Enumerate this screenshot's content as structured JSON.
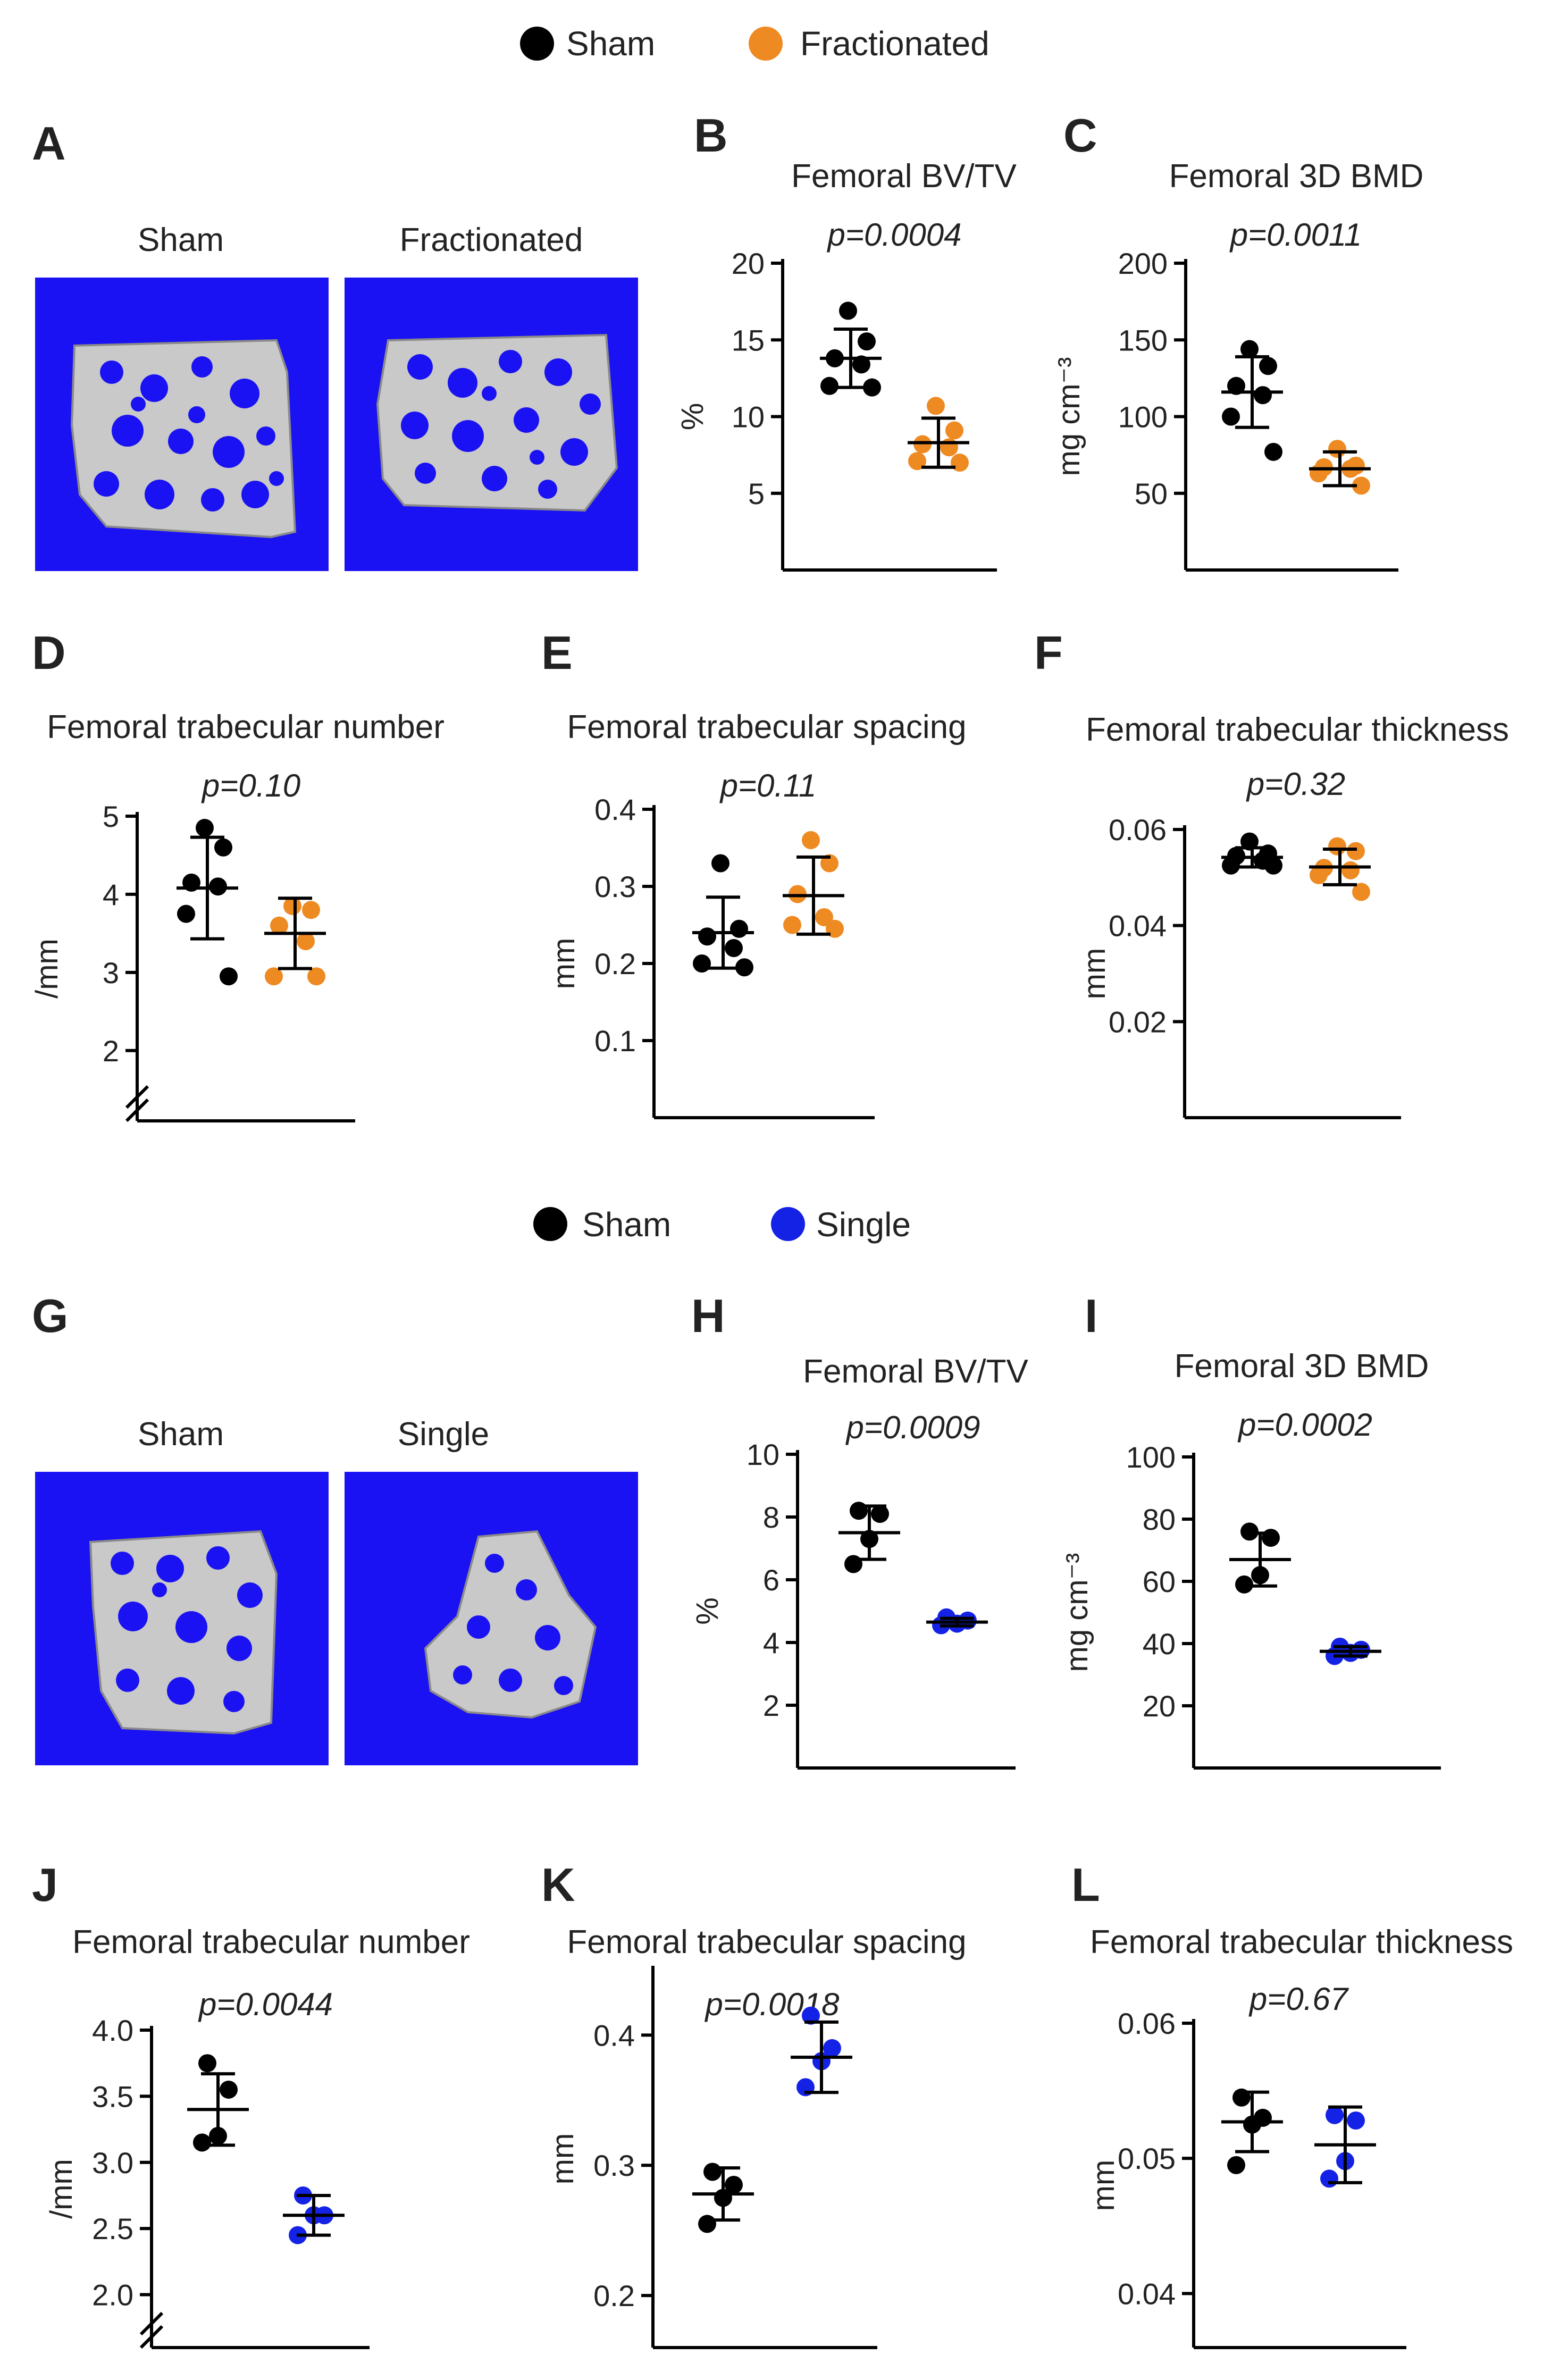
{
  "colors": {
    "sham": "#000000",
    "fractionated": "#ee8a22",
    "single": "#1422e6",
    "ct_background": "#1a12f2",
    "bone": "#c9c9c9"
  },
  "legends": [
    {
      "items": [
        {
          "label": "Sham",
          "color": "#000000"
        },
        {
          "label": "Fractionated",
          "color": "#ee8a22"
        }
      ]
    },
    {
      "items": [
        {
          "label": "Sham",
          "color": "#000000"
        },
        {
          "label": "Single",
          "color": "#1422e6"
        }
      ]
    }
  ],
  "image_panels": [
    {
      "letter": "A",
      "labels": [
        "Sham",
        "Fractionated"
      ]
    },
    {
      "letter": "G",
      "labels": [
        "Sham",
        "Single"
      ]
    }
  ],
  "chart_data": [
    {
      "letter": "B",
      "type": "scatter",
      "title": "Femoral BV/TV",
      "pvalue": "p=0.0004",
      "ylabel": "%",
      "ylim": [
        0,
        20
      ],
      "ticks": [
        "5",
        "10",
        "15",
        "20"
      ],
      "axis_break": false,
      "series": [
        {
          "name": "Sham",
          "color": "#000000",
          "values": [
            16.9,
            14.9,
            13.8,
            13.4,
            12.0,
            11.9
          ],
          "mean": 13.8,
          "sd": 1.9
        },
        {
          "name": "Fractionated",
          "color": "#ee8a22",
          "values": [
            10.7,
            9.1,
            8.2,
            8.0,
            7.1,
            7.0
          ],
          "mean": 8.3,
          "sd": 1.6
        }
      ]
    },
    {
      "letter": "C",
      "type": "scatter",
      "title": "Femoral 3D BMD",
      "pvalue": "p=0.0011",
      "ylabel": "mg cm⁻³",
      "ylim": [
        0,
        200
      ],
      "ticks": [
        "50",
        "100",
        "150",
        "200"
      ],
      "axis_break": false,
      "series": [
        {
          "name": "Sham",
          "color": "#000000",
          "values": [
            144,
            133,
            120,
            114,
            100,
            77
          ],
          "mean": 116,
          "sd": 23
        },
        {
          "name": "Fractionated",
          "color": "#ee8a22",
          "values": [
            79,
            68,
            67,
            66,
            63,
            55
          ],
          "mean": 66,
          "sd": 11
        }
      ]
    },
    {
      "letter": "D",
      "type": "scatter",
      "title": "Femoral trabecular number",
      "pvalue": "p=0.10",
      "ylabel": "/mm",
      "ylim": [
        1.1,
        5
      ],
      "ticks": [
        "2",
        "3",
        "4",
        "5"
      ],
      "axis_break": true,
      "series": [
        {
          "name": "Sham",
          "color": "#000000",
          "values": [
            4.85,
            4.6,
            4.15,
            4.1,
            3.75,
            2.95
          ],
          "mean": 4.08,
          "sd": 0.65
        },
        {
          "name": "Fractionated",
          "color": "#ee8a22",
          "values": [
            3.85,
            3.8,
            3.6,
            3.4,
            2.95,
            2.95
          ],
          "mean": 3.5,
          "sd": 0.45
        }
      ]
    },
    {
      "letter": "E",
      "type": "scatter",
      "title": "Femoral trabecular spacing",
      "pvalue": "p=0.11",
      "ylabel": "mm",
      "ylim": [
        0,
        0.4
      ],
      "ticks": [
        "0.1",
        "0.2",
        "0.3",
        "0.4"
      ],
      "axis_break": false,
      "series": [
        {
          "name": "Sham",
          "color": "#000000",
          "values": [
            0.33,
            0.245,
            0.235,
            0.22,
            0.2,
            0.195
          ],
          "mean": 0.24,
          "sd": 0.046
        },
        {
          "name": "Fractionated",
          "color": "#ee8a22",
          "values": [
            0.36,
            0.33,
            0.29,
            0.26,
            0.25,
            0.245
          ],
          "mean": 0.288,
          "sd": 0.05
        }
      ]
    },
    {
      "letter": "F",
      "type": "scatter",
      "title": "Femoral trabecular thickness",
      "pvalue": "p=0.32",
      "ylabel": "mm",
      "ylim": [
        0,
        0.06
      ],
      "ticks": [
        "0.02",
        "0.04",
        "0.06"
      ],
      "axis_break": false,
      "series": [
        {
          "name": "Sham",
          "color": "#000000",
          "values": [
            0.0575,
            0.055,
            0.0545,
            0.0535,
            0.0525,
            0.0525
          ],
          "mean": 0.0542,
          "sd": 0.002
        },
        {
          "name": "Fractionated",
          "color": "#ee8a22",
          "values": [
            0.0565,
            0.0555,
            0.052,
            0.0515,
            0.0505,
            0.047
          ],
          "mean": 0.0522,
          "sd": 0.0037
        }
      ]
    },
    {
      "letter": "H",
      "type": "scatter",
      "title": "Femoral BV/TV",
      "pvalue": "p=0.0009",
      "ylabel": "%",
      "ylim": [
        0,
        10
      ],
      "ticks": [
        "2",
        "4",
        "6",
        "8",
        "10"
      ],
      "axis_break": false,
      "series": [
        {
          "name": "Sham",
          "color": "#000000",
          "values": [
            8.2,
            8.1,
            7.3,
            6.5
          ],
          "mean": 7.5,
          "sd": 0.85
        },
        {
          "name": "Single",
          "color": "#1422e6",
          "values": [
            4.8,
            4.7,
            4.6,
            4.55
          ],
          "mean": 4.65,
          "sd": 0.12
        }
      ]
    },
    {
      "letter": "I",
      "type": "scatter",
      "title": "Femoral 3D BMD",
      "pvalue": "p=0.0002",
      "ylabel": "mg cm⁻³",
      "ylim": [
        0,
        100
      ],
      "ticks": [
        "20",
        "40",
        "60",
        "80",
        "100"
      ],
      "axis_break": false,
      "series": [
        {
          "name": "Sham",
          "color": "#000000",
          "values": [
            76,
            74,
            62,
            59
          ],
          "mean": 67,
          "sd": 8.5
        },
        {
          "name": "Single",
          "color": "#1422e6",
          "values": [
            39,
            38,
            37,
            36
          ],
          "mean": 37.5,
          "sd": 1.5
        }
      ]
    },
    {
      "letter": "J",
      "type": "scatter",
      "title": "Femoral trabecular number",
      "pvalue": "p=0.0044",
      "ylabel": "/mm",
      "ylim": [
        1.6,
        4.0
      ],
      "ticks": [
        "2.0",
        "2.5",
        "3.0",
        "3.5",
        "4.0"
      ],
      "axis_break": true,
      "series": [
        {
          "name": "Sham",
          "color": "#000000",
          "values": [
            3.75,
            3.55,
            3.2,
            3.15
          ],
          "mean": 3.4,
          "sd": 0.27
        },
        {
          "name": "Single",
          "color": "#1422e6",
          "values": [
            2.75,
            2.6,
            2.6,
            2.45
          ],
          "mean": 2.6,
          "sd": 0.15
        }
      ]
    },
    {
      "letter": "K",
      "type": "scatter",
      "title": "Femoral trabecular spacing",
      "pvalue": "p=0.0018",
      "ylabel": "mm",
      "ylim": [
        0.16,
        0.45
      ],
      "ticks": [
        "0.2",
        "0.3",
        "0.4"
      ],
      "axis_break": false,
      "series": [
        {
          "name": "Sham",
          "color": "#000000",
          "values": [
            0.295,
            0.285,
            0.275,
            0.255
          ],
          "mean": 0.278,
          "sd": 0.02
        },
        {
          "name": "Single",
          "color": "#1422e6",
          "values": [
            0.415,
            0.39,
            0.38,
            0.36
          ],
          "mean": 0.383,
          "sd": 0.027
        }
      ]
    },
    {
      "letter": "L",
      "type": "scatter",
      "title": "Femoral trabecular thickness",
      "pvalue": "p=0.67",
      "ylabel": "mm",
      "ylim": [
        0.036,
        0.06
      ],
      "ticks": [
        "0.04",
        "0.05",
        "0.06"
      ],
      "axis_break": false,
      "series": [
        {
          "name": "Sham",
          "color": "#000000",
          "values": [
            0.0545,
            0.053,
            0.0525,
            0.0495
          ],
          "mean": 0.0527,
          "sd": 0.0022
        },
        {
          "name": "Single",
          "color": "#1422e6",
          "values": [
            0.0532,
            0.0528,
            0.0498,
            0.0485
          ],
          "mean": 0.051,
          "sd": 0.0028
        }
      ]
    }
  ]
}
